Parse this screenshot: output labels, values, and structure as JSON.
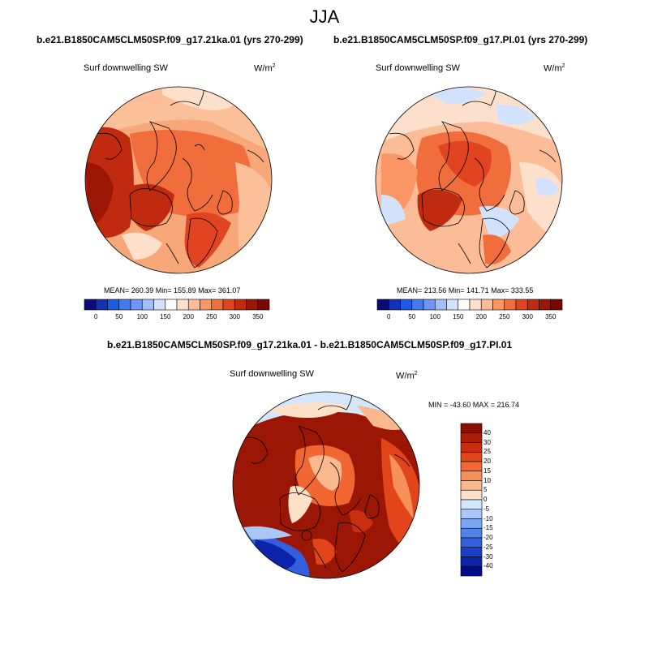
{
  "title": "JJA",
  "panels": [
    {
      "case": "b.e21.B1850CAM5CLM50SP.f09_g17.21ka.01 (yrs 270-299)",
      "variable": "Surf downwelling SW",
      "units_base": "W/m",
      "units_exp": "2",
      "stats": "MEAN= 260.39  Min= 155.89  Max= 361.07"
    },
    {
      "case": "b.e21.B1850CAM5CLM50SP.f09_g17.PI.01 (yrs 270-299)",
      "variable": "Surf downwelling SW",
      "units_base": "W/m",
      "units_exp": "2",
      "stats": "MEAN= 213.56  Min= 141.71  Max= 333.55"
    }
  ],
  "diff_panel": {
    "case": "b.e21.B1850CAM5CLM50SP.f09_g17.21ka.01 - b.e21.B1850CAM5CLM50SP.f09_g17.PI.01",
    "variable": "Surf downwelling SW",
    "units_base": "W/m",
    "units_exp": "2",
    "stats": "MIN = -43.60 MAX = 216.74"
  },
  "abs_colorbar": {
    "colors": [
      "#0a0a7a",
      "#1432b4",
      "#1e5ae6",
      "#4678f0",
      "#6e96f5",
      "#a0bef8",
      "#d2e2fc",
      "#ffffff",
      "#fde0cc",
      "#fcbc98",
      "#fa9664",
      "#f26d3c",
      "#e04420",
      "#c02a0e",
      "#9c1606",
      "#780800"
    ],
    "labels": [
      "0",
      "50",
      "100",
      "150",
      "200",
      "250",
      "300",
      "350"
    ]
  },
  "diff_colorbar": {
    "colors": [
      "#8c0e04",
      "#a81c08",
      "#c82f10",
      "#e2451a",
      "#f26632",
      "#f8905c",
      "#fbb78d",
      "#fde0c8",
      "#d4e6fc",
      "#a9c8f8",
      "#7da6f2",
      "#5583ec",
      "#335ede",
      "#1c3fc8",
      "#0c24ac",
      "#020c8a"
    ],
    "labels": [
      "40",
      "30",
      "25",
      "20",
      "15",
      "10",
      "5",
      "0",
      "-5",
      "-10",
      "-15",
      "-20",
      "-25",
      "-30",
      "-40"
    ]
  }
}
